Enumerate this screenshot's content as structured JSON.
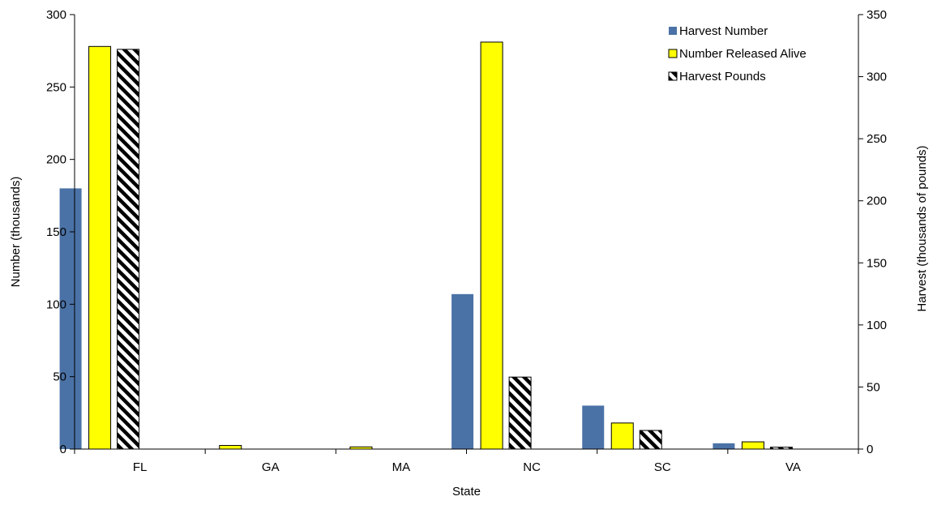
{
  "chart_data": {
    "type": "bar",
    "title": "",
    "xlabel": "State",
    "ylabel": "Number (thousands)",
    "y2label": "Harvest (thousands of pounds)",
    "categories": [
      "FL",
      "GA",
      "MA",
      "NC",
      "SC",
      "VA"
    ],
    "ylim": [
      0,
      300
    ],
    "y2lim": [
      0,
      350
    ],
    "yticks": [
      "0",
      "50",
      "100",
      "150",
      "200",
      "250",
      "300"
    ],
    "y2ticks": [
      "0",
      "50",
      "100",
      "150",
      "200",
      "250",
      "300",
      "350"
    ],
    "grid": false,
    "legend_position": "top-right",
    "series": [
      {
        "name": "Harvest Number",
        "axis": "left",
        "color": "#4a72a6",
        "pattern": "solid",
        "values": [
          180,
          0,
          0,
          107,
          30,
          4
        ]
      },
      {
        "name": "Number Released Alive",
        "axis": "left",
        "color": "#ffff00",
        "pattern": "solid",
        "values": [
          278,
          2.5,
          1.5,
          281,
          18,
          5
        ]
      },
      {
        "name": "Harvest Pounds",
        "axis": "right",
        "color": "#000000",
        "pattern": "diagonal-stripes",
        "values": [
          322,
          0,
          0,
          58,
          15,
          1.5
        ]
      }
    ]
  }
}
